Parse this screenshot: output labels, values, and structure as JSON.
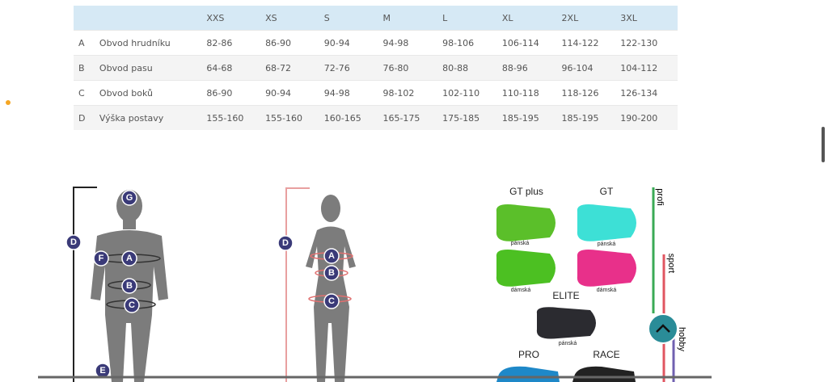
{
  "table": {
    "sizes": [
      "XXS",
      "XS",
      "S",
      "M",
      "L",
      "XL",
      "2XL",
      "3XL"
    ],
    "rows": [
      {
        "code": "A",
        "name": "Obvod hrudníku",
        "values": [
          "82-86",
          "86-90",
          "90-94",
          "94-98",
          "98-106",
          "106-114",
          "114-122",
          "122-130"
        ]
      },
      {
        "code": "B",
        "name": "Obvod pasu",
        "values": [
          "64-68",
          "68-72",
          "72-76",
          "76-80",
          "80-88",
          "88-96",
          "96-104",
          "104-112"
        ]
      },
      {
        "code": "C",
        "name": "Obvod boků",
        "values": [
          "86-90",
          "90-94",
          "94-98",
          "98-102",
          "102-110",
          "110-118",
          "118-126",
          "126-134"
        ]
      },
      {
        "code": "D",
        "name": "Výška postavy",
        "values": [
          "155-160",
          "155-160",
          "160-165",
          "165-175",
          "175-185",
          "185-195",
          "185-195",
          "190-200"
        ]
      }
    ]
  },
  "male_figure": {
    "markers": [
      "G",
      "D",
      "F",
      "A",
      "B",
      "C",
      "E"
    ]
  },
  "female_figure": {
    "markers": [
      "D",
      "A",
      "B",
      "C"
    ]
  },
  "pads": {
    "titles": [
      "GT plus",
      "GT",
      "ELITE",
      "PRO",
      "RACE"
    ],
    "variants": [
      "pánská",
      "pánská",
      "dámská",
      "dámská",
      "pánská"
    ],
    "levels": [
      "profi",
      "sport",
      "hobby"
    ]
  }
}
